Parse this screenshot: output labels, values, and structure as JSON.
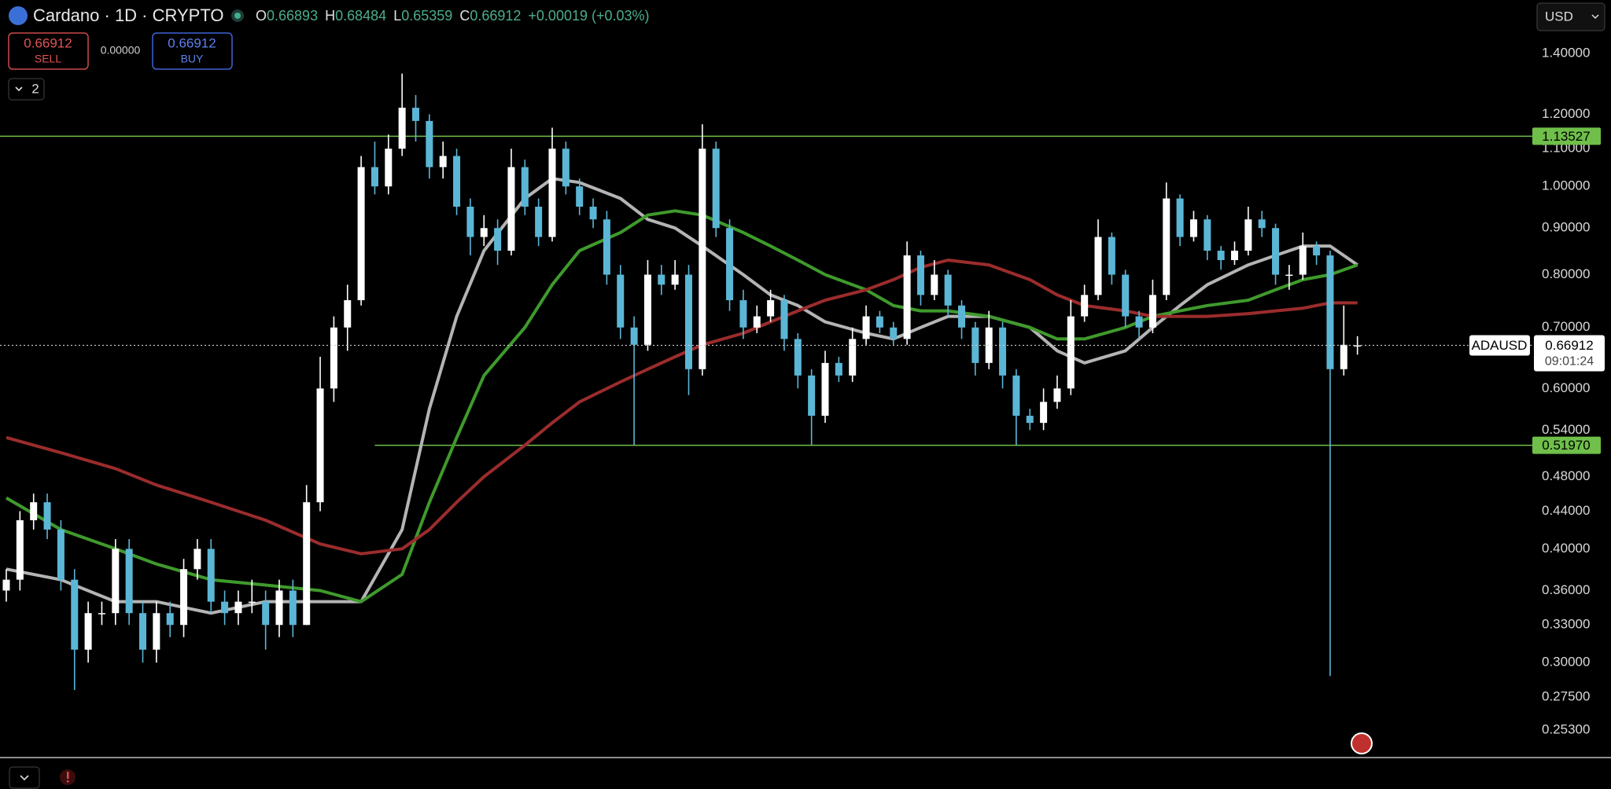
{
  "header": {
    "title": "Cardano · 1D · CRYPTO",
    "ohlc": [
      {
        "label": "O",
        "value": "0.66893"
      },
      {
        "label": "H",
        "value": "0.68484"
      },
      {
        "label": "L",
        "value": "0.65359"
      },
      {
        "label": "C",
        "value": "0.66912"
      }
    ],
    "change": "+0.00019 (+0.03%)",
    "sell": {
      "price": "0.66912",
      "label": "SELL"
    },
    "spread": "0.00000",
    "buy": {
      "price": "0.66912",
      "label": "BUY"
    },
    "indicators": "2",
    "currency": "USD"
  },
  "chart_data": {
    "type": "candlestick",
    "log_scale": true,
    "ylim": [
      0.236,
      1.602
    ],
    "yticks": [
      {
        "value": 1.4,
        "label": "1.40000"
      },
      {
        "value": 1.2,
        "label": "1.20000"
      },
      {
        "value": 1.1,
        "label": "1.10000"
      },
      {
        "value": 1.0,
        "label": "1.00000"
      },
      {
        "value": 0.9,
        "label": "0.90000"
      },
      {
        "value": 0.8,
        "label": "0.80000"
      },
      {
        "value": 0.7,
        "label": "0.70000"
      },
      {
        "value": 0.6,
        "label": "0.60000"
      },
      {
        "value": 0.54,
        "label": "0.54000"
      },
      {
        "value": 0.48,
        "label": "0.48000"
      },
      {
        "value": 0.44,
        "label": "0.44000"
      },
      {
        "value": 0.4,
        "label": "0.40000"
      },
      {
        "value": 0.36,
        "label": "0.36000"
      },
      {
        "value": 0.33,
        "label": "0.33000"
      },
      {
        "value": 0.3,
        "label": "0.30000"
      },
      {
        "value": 0.275,
        "label": "0.27500"
      },
      {
        "value": 0.253,
        "label": "0.25300"
      }
    ],
    "up_color": "#ffffff",
    "down_color": "#5bb6d6",
    "candles": [
      [
        0.36,
        0.38,
        0.35,
        0.37
      ],
      [
        0.37,
        0.44,
        0.36,
        0.43
      ],
      [
        0.43,
        0.46,
        0.42,
        0.45
      ],
      [
        0.45,
        0.46,
        0.41,
        0.42
      ],
      [
        0.42,
        0.43,
        0.36,
        0.37
      ],
      [
        0.37,
        0.38,
        0.28,
        0.31
      ],
      [
        0.31,
        0.35,
        0.3,
        0.34
      ],
      [
        0.34,
        0.35,
        0.33,
        0.34
      ],
      [
        0.34,
        0.41,
        0.33,
        0.4
      ],
      [
        0.4,
        0.41,
        0.33,
        0.34
      ],
      [
        0.34,
        0.35,
        0.3,
        0.31
      ],
      [
        0.31,
        0.35,
        0.3,
        0.34
      ],
      [
        0.34,
        0.35,
        0.32,
        0.33
      ],
      [
        0.33,
        0.39,
        0.32,
        0.38
      ],
      [
        0.38,
        0.41,
        0.37,
        0.4
      ],
      [
        0.4,
        0.41,
        0.34,
        0.35
      ],
      [
        0.35,
        0.36,
        0.33,
        0.34
      ],
      [
        0.34,
        0.36,
        0.33,
        0.35
      ],
      [
        0.35,
        0.37,
        0.34,
        0.35
      ],
      [
        0.35,
        0.36,
        0.31,
        0.33
      ],
      [
        0.33,
        0.37,
        0.32,
        0.36
      ],
      [
        0.36,
        0.37,
        0.32,
        0.33
      ],
      [
        0.33,
        0.47,
        0.33,
        0.45
      ],
      [
        0.45,
        0.65,
        0.44,
        0.6
      ],
      [
        0.6,
        0.72,
        0.58,
        0.7
      ],
      [
        0.7,
        0.78,
        0.66,
        0.75
      ],
      [
        0.75,
        1.08,
        0.74,
        1.05
      ],
      [
        1.05,
        1.12,
        0.98,
        1.0
      ],
      [
        1.0,
        1.14,
        0.98,
        1.1
      ],
      [
        1.1,
        1.33,
        1.08,
        1.22
      ],
      [
        1.22,
        1.26,
        1.12,
        1.18
      ],
      [
        1.18,
        1.2,
        1.02,
        1.05
      ],
      [
        1.05,
        1.12,
        1.02,
        1.08
      ],
      [
        1.08,
        1.1,
        0.93,
        0.95
      ],
      [
        0.95,
        0.97,
        0.84,
        0.88
      ],
      [
        0.88,
        0.93,
        0.86,
        0.9
      ],
      [
        0.9,
        0.92,
        0.82,
        0.85
      ],
      [
        0.85,
        1.1,
        0.84,
        1.05
      ],
      [
        1.05,
        1.07,
        0.93,
        0.95
      ],
      [
        0.95,
        0.97,
        0.86,
        0.88
      ],
      [
        0.88,
        1.16,
        0.87,
        1.1
      ],
      [
        1.1,
        1.12,
        0.98,
        1.0
      ],
      [
        1.0,
        1.02,
        0.93,
        0.95
      ],
      [
        0.95,
        0.97,
        0.9,
        0.92
      ],
      [
        0.92,
        0.94,
        0.78,
        0.8
      ],
      [
        0.8,
        0.82,
        0.68,
        0.7
      ],
      [
        0.7,
        0.72,
        0.52,
        0.67
      ],
      [
        0.67,
        0.83,
        0.66,
        0.8
      ],
      [
        0.8,
        0.82,
        0.76,
        0.78
      ],
      [
        0.78,
        0.83,
        0.77,
        0.8
      ],
      [
        0.8,
        0.82,
        0.59,
        0.63
      ],
      [
        0.63,
        1.17,
        0.62,
        1.1
      ],
      [
        1.1,
        1.12,
        0.88,
        0.9
      ],
      [
        0.9,
        0.92,
        0.73,
        0.75
      ],
      [
        0.75,
        0.77,
        0.68,
        0.7
      ],
      [
        0.7,
        0.74,
        0.69,
        0.72
      ],
      [
        0.72,
        0.77,
        0.71,
        0.75
      ],
      [
        0.75,
        0.76,
        0.66,
        0.68
      ],
      [
        0.68,
        0.69,
        0.6,
        0.62
      ],
      [
        0.62,
        0.63,
        0.52,
        0.56
      ],
      [
        0.56,
        0.66,
        0.55,
        0.64
      ],
      [
        0.64,
        0.65,
        0.61,
        0.62
      ],
      [
        0.62,
        0.7,
        0.61,
        0.68
      ],
      [
        0.68,
        0.74,
        0.67,
        0.72
      ],
      [
        0.72,
        0.73,
        0.69,
        0.7
      ],
      [
        0.7,
        0.71,
        0.67,
        0.68
      ],
      [
        0.68,
        0.87,
        0.67,
        0.84
      ],
      [
        0.84,
        0.85,
        0.74,
        0.76
      ],
      [
        0.76,
        0.83,
        0.75,
        0.8
      ],
      [
        0.8,
        0.81,
        0.72,
        0.74
      ],
      [
        0.74,
        0.75,
        0.68,
        0.7
      ],
      [
        0.7,
        0.71,
        0.62,
        0.64
      ],
      [
        0.64,
        0.73,
        0.63,
        0.7
      ],
      [
        0.7,
        0.71,
        0.6,
        0.62
      ],
      [
        0.62,
        0.63,
        0.52,
        0.56
      ],
      [
        0.56,
        0.57,
        0.54,
        0.55
      ],
      [
        0.55,
        0.6,
        0.54,
        0.58
      ],
      [
        0.58,
        0.62,
        0.57,
        0.6
      ],
      [
        0.6,
        0.75,
        0.59,
        0.72
      ],
      [
        0.72,
        0.78,
        0.71,
        0.76
      ],
      [
        0.76,
        0.92,
        0.75,
        0.88
      ],
      [
        0.88,
        0.89,
        0.78,
        0.8
      ],
      [
        0.8,
        0.81,
        0.7,
        0.72
      ],
      [
        0.72,
        0.73,
        0.68,
        0.7
      ],
      [
        0.7,
        0.79,
        0.69,
        0.76
      ],
      [
        0.76,
        1.01,
        0.75,
        0.97
      ],
      [
        0.97,
        0.98,
        0.86,
        0.88
      ],
      [
        0.88,
        0.94,
        0.87,
        0.92
      ],
      [
        0.92,
        0.93,
        0.83,
        0.85
      ],
      [
        0.85,
        0.86,
        0.81,
        0.83
      ],
      [
        0.83,
        0.87,
        0.82,
        0.85
      ],
      [
        0.85,
        0.95,
        0.84,
        0.92
      ],
      [
        0.92,
        0.94,
        0.88,
        0.9
      ],
      [
        0.9,
        0.91,
        0.78,
        0.8
      ],
      [
        0.8,
        0.82,
        0.77,
        0.8
      ],
      [
        0.8,
        0.89,
        0.79,
        0.86
      ],
      [
        0.86,
        0.87,
        0.82,
        0.84
      ],
      [
        0.84,
        0.85,
        0.29,
        0.63
      ],
      [
        0.63,
        0.74,
        0.62,
        0.67
      ],
      [
        0.66893,
        0.68484,
        0.65359,
        0.66912
      ]
    ],
    "series": [
      {
        "color": "#b4b4b4",
        "x": [
          0,
          4,
          8,
          11,
          15,
          19,
          23,
          26,
          29,
          31,
          33,
          35,
          38,
          40,
          42,
          45,
          47,
          49,
          51,
          54,
          56,
          58,
          60,
          63,
          65,
          67,
          69,
          72,
          75,
          77,
          79,
          82,
          84,
          86,
          88,
          91,
          93,
          95,
          97,
          99
        ],
        "values": [
          0.38,
          0.37,
          0.35,
          0.35,
          0.34,
          0.35,
          0.35,
          0.35,
          0.42,
          0.57,
          0.72,
          0.85,
          0.97,
          1.02,
          1.01,
          0.97,
          0.92,
          0.9,
          0.86,
          0.8,
          0.76,
          0.74,
          0.71,
          0.69,
          0.68,
          0.7,
          0.72,
          0.72,
          0.7,
          0.66,
          0.64,
          0.66,
          0.7,
          0.74,
          0.78,
          0.82,
          0.84,
          0.86,
          0.86,
          0.82
        ]
      },
      {
        "color": "#3f9a2c",
        "x": [
          0,
          4,
          8,
          11,
          15,
          19,
          23,
          26,
          29,
          31,
          33,
          35,
          38,
          40,
          42,
          45,
          47,
          49,
          51,
          54,
          56,
          58,
          60,
          63,
          65,
          67,
          69,
          72,
          75,
          77,
          79,
          82,
          84,
          86,
          88,
          91,
          93,
          95,
          97,
          99
        ],
        "values": [
          0.455,
          0.42,
          0.4,
          0.385,
          0.37,
          0.365,
          0.36,
          0.35,
          0.375,
          0.45,
          0.53,
          0.62,
          0.7,
          0.78,
          0.85,
          0.89,
          0.93,
          0.94,
          0.93,
          0.89,
          0.86,
          0.83,
          0.8,
          0.77,
          0.74,
          0.73,
          0.73,
          0.72,
          0.7,
          0.68,
          0.68,
          0.7,
          0.72,
          0.73,
          0.74,
          0.75,
          0.77,
          0.79,
          0.8,
          0.82
        ]
      },
      {
        "color": "#9b2c2c",
        "x": [
          0,
          4,
          8,
          11,
          15,
          19,
          23,
          26,
          29,
          31,
          33,
          35,
          38,
          40,
          42,
          45,
          47,
          49,
          51,
          54,
          56,
          58,
          60,
          63,
          65,
          67,
          69,
          72,
          75,
          77,
          79,
          82,
          84,
          86,
          88,
          91,
          93,
          95,
          97,
          99
        ],
        "values": [
          0.53,
          0.51,
          0.49,
          0.47,
          0.45,
          0.43,
          0.405,
          0.395,
          0.4,
          0.42,
          0.45,
          0.48,
          0.52,
          0.55,
          0.58,
          0.61,
          0.63,
          0.65,
          0.67,
          0.69,
          0.71,
          0.73,
          0.75,
          0.77,
          0.79,
          0.815,
          0.83,
          0.82,
          0.79,
          0.76,
          0.74,
          0.73,
          0.72,
          0.72,
          0.72,
          0.725,
          0.73,
          0.735,
          0.745,
          0.745
        ]
      }
    ],
    "levels": [
      {
        "value": 1.13527,
        "label": "1.13527",
        "color": "#6fbf4a"
      },
      {
        "value": 0.5197,
        "label": "0.51970",
        "color": "#6fbf4a",
        "x_start": 27
      }
    ],
    "last": {
      "value": 0.66912,
      "label": "0.66912",
      "symbol": "ADAUSD",
      "countdown": "09:01:24"
    }
  }
}
